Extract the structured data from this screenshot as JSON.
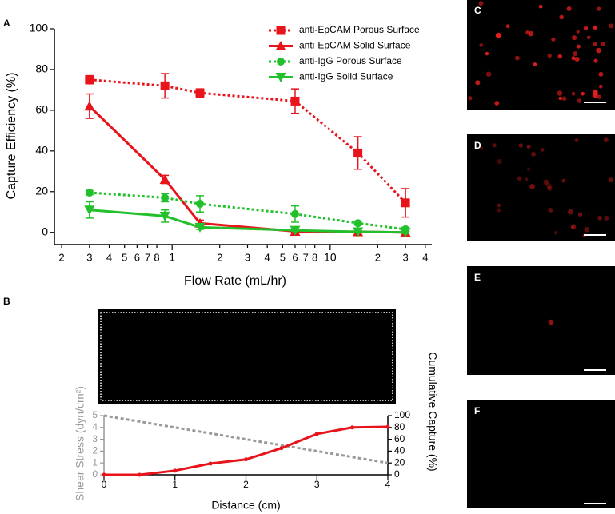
{
  "panel_labels": [
    "A",
    "B",
    "C",
    "D",
    "E",
    "F"
  ],
  "chart_data": [
    {
      "type": "line",
      "xscale": "log",
      "xlabel": "Flow Rate (mL/hr)",
      "ylabel": "Capture Efficiency (%)",
      "x": [
        0.3,
        0.9,
        1.5,
        6,
        15,
        30
      ],
      "xlim": [
        0.18,
        44
      ],
      "ylim": [
        -6,
        100
      ],
      "xticks": [
        {
          "value": 0.2,
          "label": "2"
        },
        {
          "value": 0.3,
          "label": "3"
        },
        {
          "value": 0.4,
          "label": "4"
        },
        {
          "value": 0.5,
          "label": "5"
        },
        {
          "value": 0.6,
          "label": "6"
        },
        {
          "value": 0.7,
          "label": "7"
        },
        {
          "value": 0.8,
          "label": "8"
        },
        1,
        2,
        3,
        4,
        5,
        6,
        7,
        8,
        10,
        {
          "value": 20,
          "label": "2"
        },
        {
          "value": 30,
          "label": "3"
        },
        {
          "value": 40,
          "label": "4"
        }
      ],
      "yticks": [
        0,
        20,
        40,
        60,
        80,
        100
      ],
      "legend": "upper right",
      "series": [
        {
          "name": "anti-EpCAM Porous Surface",
          "color": "#e8141c",
          "line_style": "dotted",
          "marker": "square",
          "values": [
            75,
            72,
            68.5,
            64.5,
            39,
            14.5
          ],
          "errors": [
            2,
            6,
            2,
            6,
            8,
            7
          ]
        },
        {
          "name": "anti-EpCAM Solid Surface",
          "color": "#e8141c",
          "line_style": "solid",
          "marker": "triangle",
          "values": [
            62,
            26,
            4.5,
            0.5,
            0.3,
            0
          ],
          "errors": [
            6,
            2,
            1.5,
            0.5,
            0.5,
            0.5
          ]
        },
        {
          "name": "anti-IgG Porous Surface",
          "color": "#22c02a",
          "line_style": "dotted",
          "marker": "circle",
          "values": [
            19.5,
            17,
            14,
            9,
            4.5,
            1.5
          ],
          "errors": [
            1,
            2,
            4,
            4,
            1,
            1
          ]
        },
        {
          "name": "anti-IgG Solid Surface",
          "color": "#22c02a",
          "line_style": "solid",
          "marker": "triangle-down",
          "values": [
            11,
            8,
            2.5,
            1,
            0.3,
            0
          ],
          "errors": [
            4,
            3,
            1,
            0.5,
            0.5,
            0.5
          ]
        }
      ]
    },
    {
      "type": "line",
      "xlabel": "Distance (cm)",
      "ylabel": "Shear Stress (dyn/cm²)",
      "y2label": "Cumulative Capture (%)",
      "x": [
        0,
        0.5,
        1,
        1.5,
        2,
        2.5,
        3,
        3.5,
        4
      ],
      "xlim": [
        0,
        4
      ],
      "ylim": [
        0,
        5
      ],
      "y2lim": [
        0,
        100
      ],
      "xticks": [
        0,
        1,
        2,
        3,
        4
      ],
      "yticks": [
        0,
        1,
        2,
        3,
        4,
        5
      ],
      "y2ticks": [
        0,
        20,
        40,
        60,
        80,
        100
      ],
      "ycolor": "#999999",
      "series": [
        {
          "color": "#999999",
          "line_style": "dashed",
          "marker": "none",
          "x": [
            0,
            4
          ],
          "values": [
            5,
            1
          ]
        },
        {
          "color": "#e8141c",
          "line_style": "solid",
          "marker": "circle",
          "axis": "y2",
          "values": [
            0,
            0,
            7,
            19,
            26,
            45,
            69,
            80,
            81
          ]
        }
      ]
    }
  ]
}
